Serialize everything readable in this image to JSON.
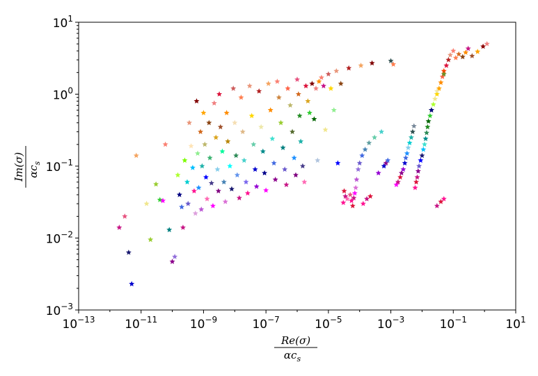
{
  "chart_data": {
    "type": "scatter",
    "marker": "star",
    "title": "",
    "xlabel": {
      "numerator": "Re(σ)",
      "denominator": "αc",
      "subscript": "s"
    },
    "ylabel": {
      "numerator": "Im(σ)",
      "denominator": "αc",
      "subscript": "s"
    },
    "xscale": "log",
    "yscale": "log",
    "xlim": [
      1e-13,
      10
    ],
    "ylim": [
      0.001,
      10
    ],
    "x_ticks": [
      {
        "value": 1e-13,
        "base": "10",
        "exp": "−13"
      },
      {
        "value": 1e-11,
        "base": "10",
        "exp": "−11"
      },
      {
        "value": 1e-09,
        "base": "10",
        "exp": "−9"
      },
      {
        "value": 1e-07,
        "base": "10",
        "exp": "−7"
      },
      {
        "value": 1e-05,
        "base": "10",
        "exp": "−5"
      },
      {
        "value": 0.001,
        "base": "10",
        "exp": "−3"
      },
      {
        "value": 0.1,
        "base": "10",
        "exp": "−1"
      },
      {
        "value": 10,
        "base": "10",
        "exp": "1"
      }
    ],
    "y_ticks": [
      {
        "value": 0.001,
        "base": "10",
        "exp": "−3"
      },
      {
        "value": 0.01,
        "base": "10",
        "exp": "−2"
      },
      {
        "value": 0.1,
        "base": "10",
        "exp": "−1"
      },
      {
        "value": 1,
        "base": "10",
        "exp": "0"
      },
      {
        "value": 10,
        "base": "10",
        "exp": "1"
      }
    ],
    "grid": false,
    "legend": "none",
    "points": [
      [
        2e-12,
        0.014,
        "#c71585"
      ],
      [
        4e-12,
        0.0063,
        "#191970"
      ],
      [
        5e-12,
        0.0023,
        "#0000cd"
      ],
      [
        3e-12,
        0.02,
        "#e75480"
      ],
      [
        7e-12,
        0.14,
        "#f4a460"
      ],
      [
        1.5e-11,
        0.03,
        "#f0e68c"
      ],
      [
        2e-11,
        0.0095,
        "#9acd32"
      ],
      [
        3e-11,
        0.056,
        "#9acd32"
      ],
      [
        4e-11,
        0.034,
        "#32cd32"
      ],
      [
        5e-11,
        0.033,
        "#ff00ff"
      ],
      [
        6e-11,
        0.2,
        "#fa8072"
      ],
      [
        8e-11,
        0.013,
        "#008080"
      ],
      [
        1e-10,
        0.0047,
        "#8b008b"
      ],
      [
        1.2e-10,
        0.0055,
        "#9370db"
      ],
      [
        1.5e-10,
        0.075,
        "#adff2f"
      ],
      [
        1.7e-10,
        0.04,
        "#000080"
      ],
      [
        2e-10,
        0.027,
        "#4169e1"
      ],
      [
        2.2e-10,
        0.014,
        "#c71585"
      ],
      [
        2.5e-10,
        0.12,
        "#7cfc00"
      ],
      [
        3e-10,
        0.06,
        "#00ced1"
      ],
      [
        3.2e-10,
        0.03,
        "#6a5acd"
      ],
      [
        3.5e-10,
        0.4,
        "#e9967a"
      ],
      [
        4e-10,
        0.19,
        "#ffe4b5"
      ],
      [
        4.5e-10,
        0.095,
        "#00bfff"
      ],
      [
        5e-10,
        0.045,
        "#ff1493"
      ],
      [
        5.5e-10,
        0.022,
        "#dda0dd"
      ],
      [
        6e-10,
        0.8,
        "#800000"
      ],
      [
        6.5e-10,
        0.15,
        "#90ee90"
      ],
      [
        7e-10,
        0.05,
        "#1e90ff"
      ],
      [
        8e-10,
        0.3,
        "#d2691e"
      ],
      [
        8.5e-10,
        0.025,
        "#ba55d3"
      ],
      [
        9e-10,
        0.1,
        "#20b2aa"
      ],
      [
        1e-09,
        0.55,
        "#ffa500"
      ],
      [
        1.1e-09,
        0.2,
        "#bdb76b"
      ],
      [
        1.2e-09,
        0.07,
        "#0000ff"
      ],
      [
        1.3e-09,
        0.035,
        "#ff69b4"
      ],
      [
        1.5e-09,
        0.4,
        "#8b4513"
      ],
      [
        1.6e-09,
        0.13,
        "#3cb371"
      ],
      [
        1.8e-09,
        0.058,
        "#483d8b"
      ],
      [
        2e-09,
        0.028,
        "#ff00ff"
      ],
      [
        2.2e-09,
        0.75,
        "#f08080"
      ],
      [
        2.5e-09,
        0.25,
        "#daa520"
      ],
      [
        2.8e-09,
        0.09,
        "#87ceeb"
      ],
      [
        3e-09,
        0.045,
        "#800080"
      ],
      [
        3.2e-09,
        1.0,
        "#dc143c"
      ],
      [
        3.5e-09,
        0.35,
        "#a0522d"
      ],
      [
        4e-09,
        0.16,
        "#00fa9a"
      ],
      [
        4.5e-09,
        0.06,
        "#4682b4"
      ],
      [
        5e-09,
        0.032,
        "#da70d6"
      ],
      [
        5.5e-09,
        0.55,
        "#ff8c00"
      ],
      [
        6e-09,
        0.22,
        "#b8860b"
      ],
      [
        7e-09,
        0.1,
        "#00ffff"
      ],
      [
        8e-09,
        0.048,
        "#191970"
      ],
      [
        9e-09,
        1.2,
        "#cd5c5c"
      ],
      [
        1e-08,
        0.4,
        "#f5deb3"
      ],
      [
        1.1e-08,
        0.14,
        "#2e8b57"
      ],
      [
        1.2e-08,
        0.075,
        "#6495ed"
      ],
      [
        1.4e-08,
        0.036,
        "#c71585"
      ],
      [
        1.6e-08,
        0.9,
        "#ff7f50"
      ],
      [
        1.8e-08,
        0.3,
        "#deb887"
      ],
      [
        2e-08,
        0.12,
        "#48d1cc"
      ],
      [
        2.3e-08,
        0.06,
        "#7b68ee"
      ],
      [
        2.6e-08,
        0.042,
        "#ff1493"
      ],
      [
        3e-08,
        1.3,
        "#e9967a"
      ],
      [
        3.5e-08,
        0.5,
        "#ffd700"
      ],
      [
        4e-08,
        0.2,
        "#66cdaa"
      ],
      [
        4.5e-08,
        0.09,
        "#0000cd"
      ],
      [
        5e-08,
        0.052,
        "#9400d3"
      ],
      [
        6e-08,
        1.1,
        "#b22222"
      ],
      [
        7e-08,
        0.35,
        "#eee8aa"
      ],
      [
        8e-08,
        0.16,
        "#008b8b"
      ],
      [
        9e-08,
        0.08,
        "#00008b"
      ],
      [
        1e-07,
        0.046,
        "#ff00ff"
      ],
      [
        1.2e-07,
        1.4,
        "#f4a460"
      ],
      [
        1.4e-07,
        0.6,
        "#ff8c00"
      ],
      [
        1.6e-07,
        0.24,
        "#40e0d0"
      ],
      [
        1.8e-07,
        0.11,
        "#4169e1"
      ],
      [
        2e-07,
        0.065,
        "#8b008b"
      ],
      [
        2.3e-07,
        1.5,
        "#fa8072"
      ],
      [
        2.6e-07,
        0.9,
        "#cd853f"
      ],
      [
        3e-07,
        0.4,
        "#9acd32"
      ],
      [
        3.5e-07,
        0.18,
        "#008080"
      ],
      [
        4e-07,
        0.09,
        "#6a5acd"
      ],
      [
        4.5e-07,
        0.055,
        "#c71585"
      ],
      [
        5e-07,
        1.2,
        "#ff6347"
      ],
      [
        6e-07,
        0.7,
        "#bdb76b"
      ],
      [
        7e-07,
        0.3,
        "#556b2f"
      ],
      [
        8e-07,
        0.13,
        "#1e90ff"
      ],
      [
        9e-07,
        0.075,
        "#800080"
      ],
      [
        1e-06,
        1.6,
        "#e75480"
      ],
      [
        1.1e-06,
        1.0,
        "#d2691e"
      ],
      [
        1.2e-06,
        0.5,
        "#228b22"
      ],
      [
        1.3e-06,
        0.22,
        "#20b2aa"
      ],
      [
        1.5e-06,
        0.1,
        "#483d8b"
      ],
      [
        1.7e-06,
        0.06,
        "#ff69b4"
      ],
      [
        1.9e-06,
        1.3,
        "#dc143c"
      ],
      [
        2.2e-06,
        0.8,
        "#daa520"
      ],
      [
        2.5e-06,
        0.55,
        "#32cd32"
      ],
      [
        3e-06,
        1.4,
        "#800000"
      ],
      [
        3.5e-06,
        0.45,
        "#006400"
      ],
      [
        4e-06,
        1.2,
        "#f08080"
      ],
      [
        4.5e-06,
        0.12,
        "#b0c4de"
      ],
      [
        5e-06,
        1.5,
        "#ff8c00"
      ],
      [
        6e-06,
        1.7,
        "#fa8072"
      ],
      [
        7e-06,
        1.3,
        "#c71585"
      ],
      [
        8e-06,
        0.32,
        "#f0e68c"
      ],
      [
        1e-05,
        1.9,
        "#cd5c5c"
      ],
      [
        1.2e-05,
        1.2,
        "#ffd700"
      ],
      [
        1.5e-05,
        0.6,
        "#90ee90"
      ],
      [
        1.8e-05,
        2.1,
        "#e9967a"
      ],
      [
        2e-05,
        0.11,
        "#0000ff"
      ],
      [
        2.5e-05,
        1.4,
        "#8b4513"
      ],
      [
        3e-05,
        0.031,
        "#ff1493"
      ],
      [
        3.2e-05,
        0.045,
        "#dc143c"
      ],
      [
        3.5e-05,
        0.038,
        "#c71585"
      ],
      [
        4e-05,
        0.035,
        "#ff69b4"
      ],
      [
        4.5e-05,
        2.3,
        "#b22222"
      ],
      [
        5e-05,
        0.04,
        "#e75480"
      ],
      [
        5.5e-05,
        0.033,
        "#ff1493"
      ],
      [
        6e-05,
        0.028,
        "#dc143c"
      ],
      [
        6.5e-05,
        0.036,
        "#c71585"
      ],
      [
        7e-05,
        0.042,
        "#ff00ff"
      ],
      [
        7.5e-05,
        0.05,
        "#da70d6"
      ],
      [
        8e-05,
        0.065,
        "#ba55d3"
      ],
      [
        9e-05,
        0.09,
        "#9370db"
      ],
      [
        0.0001,
        0.11,
        "#6a5acd"
      ],
      [
        0.00011,
        2.5,
        "#f4a460"
      ],
      [
        0.00012,
        0.14,
        "#4169e1"
      ],
      [
        0.00013,
        0.03,
        "#ff1493"
      ],
      [
        0.00015,
        0.17,
        "#4682b4"
      ],
      [
        0.00017,
        0.035,
        "#c71585"
      ],
      [
        0.0002,
        0.21,
        "#5f9ea0"
      ],
      [
        0.00022,
        0.038,
        "#dc143c"
      ],
      [
        0.00025,
        2.7,
        "#800000"
      ],
      [
        0.0003,
        0.25,
        "#66cdaa"
      ],
      [
        0.0004,
        0.08,
        "#9400d3"
      ],
      [
        0.0005,
        0.3,
        "#48d1cc"
      ],
      [
        0.0006,
        0.1,
        "#0000cd"
      ],
      [
        0.0007,
        0.11,
        "#8b008b"
      ],
      [
        0.0008,
        0.12,
        "#4169e1"
      ],
      [
        0.001,
        2.9,
        "#2f4f4f"
      ],
      [
        0.0012,
        2.6,
        "#ff7f50"
      ],
      [
        0.0015,
        0.055,
        "#ff00ff"
      ],
      [
        0.0017,
        0.06,
        "#c71585"
      ],
      [
        0.002,
        0.07,
        "#dc143c"
      ],
      [
        0.0022,
        0.08,
        "#8b008b"
      ],
      [
        0.0025,
        0.09,
        "#9400d3"
      ],
      [
        0.0028,
        0.11,
        "#0000cd"
      ],
      [
        0.003,
        0.13,
        "#4169e1"
      ],
      [
        0.0033,
        0.15,
        "#1e90ff"
      ],
      [
        0.0036,
        0.18,
        "#87ceeb"
      ],
      [
        0.004,
        0.21,
        "#00ced1"
      ],
      [
        0.0045,
        0.25,
        "#20b2aa"
      ],
      [
        0.005,
        0.3,
        "#2f4f4f"
      ],
      [
        0.0055,
        0.36,
        "#778899"
      ],
      [
        0.006,
        0.05,
        "#ff1493"
      ],
      [
        0.0065,
        0.06,
        "#dc143c"
      ],
      [
        0.007,
        0.07,
        "#c71585"
      ],
      [
        0.0075,
        0.085,
        "#8b008b"
      ],
      [
        0.008,
        0.1,
        "#6a5acd"
      ],
      [
        0.009,
        0.12,
        "#0000ff"
      ],
      [
        0.01,
        0.14,
        "#191970"
      ],
      [
        0.011,
        0.17,
        "#00bfff"
      ],
      [
        0.012,
        0.2,
        "#40e0d0"
      ],
      [
        0.013,
        0.24,
        "#008b8b"
      ],
      [
        0.014,
        0.29,
        "#2e8b57"
      ],
      [
        0.015,
        0.35,
        "#228b22"
      ],
      [
        0.016,
        0.42,
        "#006400"
      ],
      [
        0.018,
        0.5,
        "#32cd32"
      ],
      [
        0.02,
        0.6,
        "#9acd32"
      ],
      [
        0.023,
        0.72,
        "#adff2f"
      ],
      [
        0.026,
        0.86,
        "#f0e68c"
      ],
      [
        0.03,
        1.0,
        "#ffd700"
      ],
      [
        0.035,
        1.2,
        "#ffa500"
      ],
      [
        0.04,
        1.45,
        "#ff8c00"
      ],
      [
        0.045,
        1.75,
        "#ff6347"
      ],
      [
        0.05,
        2.1,
        "#ff4500"
      ],
      [
        0.06,
        2.5,
        "#dc143c"
      ],
      [
        0.07,
        3.0,
        "#b22222"
      ],
      [
        0.08,
        3.5,
        "#e9967a"
      ],
      [
        0.1,
        4.0,
        "#fa8072"
      ],
      [
        0.12,
        3.2,
        "#ff7f50"
      ],
      [
        0.15,
        3.6,
        "#d2691e"
      ],
      [
        0.2,
        3.3,
        "#8b4513"
      ],
      [
        0.25,
        3.8,
        "#ff8c00"
      ],
      [
        0.3,
        4.3,
        "#c71585"
      ],
      [
        0.4,
        3.4,
        "#a0522d"
      ],
      [
        0.6,
        3.9,
        "#ffa500"
      ],
      [
        0.9,
        4.6,
        "#8b0000"
      ],
      [
        1.2,
        5.0,
        "#f08080"
      ],
      [
        0.05,
        1.9,
        "#6b8e23"
      ],
      [
        0.03,
        1.1,
        "#eee8aa"
      ],
      [
        0.05,
        0.035,
        "#ff1493"
      ],
      [
        0.03,
        0.028,
        "#c71585"
      ],
      [
        0.04,
        0.032,
        "#dc143c"
      ],
      [
        0.02,
        0.6,
        "#000080"
      ]
    ]
  }
}
